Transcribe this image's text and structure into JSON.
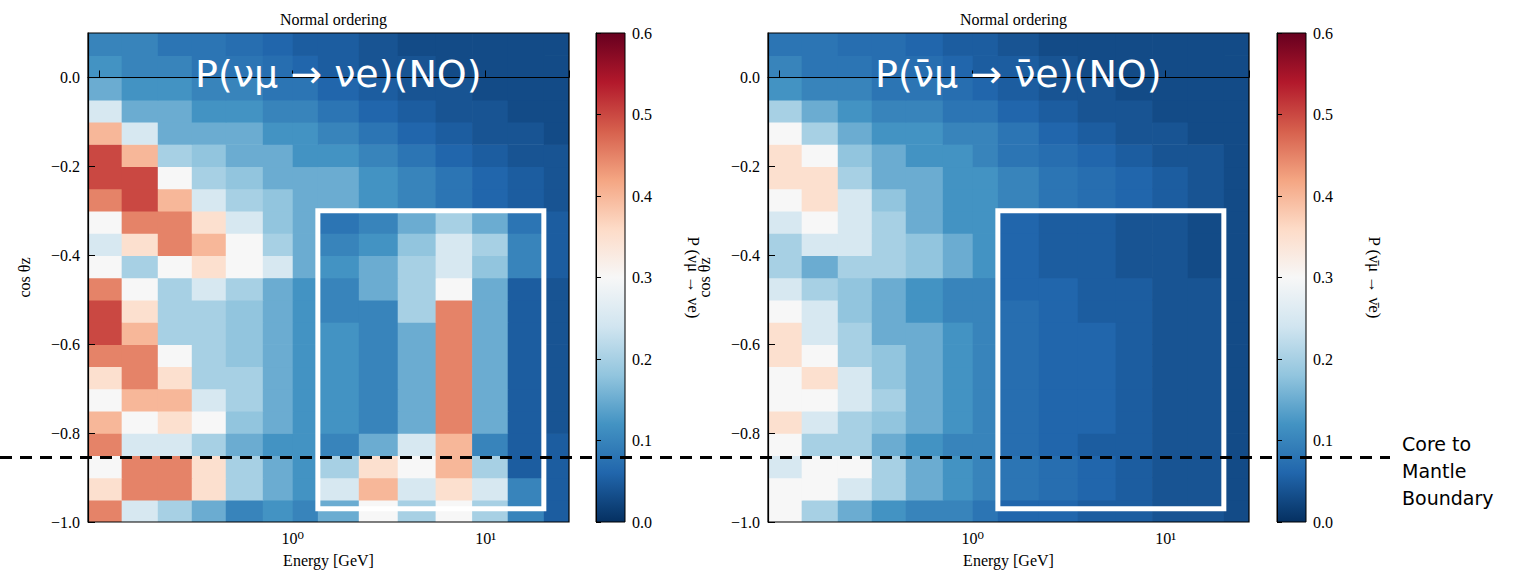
{
  "chart_data": [
    {
      "type": "heatmap",
      "title": "Normal ordering",
      "annotation": "P(νμ → νe)(NO)",
      "xlabel": "Energy [GeV]",
      "ylabel": "cos θz",
      "log": "x",
      "grid": false,
      "xlim": [
        0.087,
        27
      ],
      "xticks": [
        {
          "value": 1,
          "label": "10⁰"
        },
        {
          "value": 10,
          "label": "10¹"
        }
      ],
      "ylim": [
        -1,
        0.1
      ],
      "yticks": [
        {
          "value": -1,
          "label": "−1.0"
        },
        {
          "value": -0.8,
          "label": "−0.8"
        },
        {
          "value": -0.6,
          "label": "−0.6"
        },
        {
          "value": -0.4,
          "label": "−0.4"
        },
        {
          "value": -0.2,
          "label": "−0.2"
        },
        {
          "value": 0,
          "label": "0.0"
        }
      ],
      "energy_edges": [
        0.087,
        0.13,
        0.2,
        0.3,
        0.45,
        0.7,
        1,
        1.35,
        2.2,
        3.5,
        5.5,
        8.5,
        13,
        20,
        27
      ],
      "cos_edges": [
        -1,
        -0.95,
        -0.9,
        -0.85,
        -0.8,
        -0.75,
        -0.7,
        -0.65,
        -0.6,
        -0.55,
        -0.5,
        -0.45,
        -0.4,
        -0.35,
        -0.3,
        -0.25,
        -0.2,
        -0.15,
        -0.1,
        -0.05,
        0,
        0.05,
        0.1
      ],
      "probability": [
        [
          0.45,
          0.25,
          0.2,
          0.15,
          0.1,
          0.12,
          0.1,
          0.15,
          0.3,
          0.2,
          0.3,
          0.2,
          0.1,
          0.05
        ],
        [
          0.35,
          0.45,
          0.45,
          0.35,
          0.2,
          0.15,
          0.12,
          0.25,
          0.4,
          0.25,
          0.35,
          0.25,
          0.1,
          0.05
        ],
        [
          0.3,
          0.45,
          0.45,
          0.35,
          0.2,
          0.15,
          0.12,
          0.2,
          0.35,
          0.3,
          0.4,
          0.2,
          0.05,
          0.05
        ],
        [
          0.45,
          0.25,
          0.25,
          0.2,
          0.15,
          0.12,
          0.12,
          0.1,
          0.15,
          0.25,
          0.4,
          0.1,
          0.05,
          0.05
        ],
        [
          0.4,
          0.3,
          0.35,
          0.3,
          0.18,
          0.15,
          0.12,
          0.12,
          0.1,
          0.15,
          0.45,
          0.15,
          0.05,
          0.04
        ],
        [
          0.3,
          0.4,
          0.4,
          0.25,
          0.2,
          0.15,
          0.12,
          0.12,
          0.1,
          0.15,
          0.45,
          0.15,
          0.05,
          0.04
        ],
        [
          0.35,
          0.45,
          0.35,
          0.2,
          0.2,
          0.15,
          0.12,
          0.12,
          0.1,
          0.15,
          0.45,
          0.15,
          0.05,
          0.04
        ],
        [
          0.45,
          0.45,
          0.3,
          0.2,
          0.18,
          0.15,
          0.12,
          0.12,
          0.1,
          0.15,
          0.45,
          0.15,
          0.05,
          0.04
        ],
        [
          0.5,
          0.4,
          0.2,
          0.2,
          0.18,
          0.15,
          0.12,
          0.12,
          0.1,
          0.15,
          0.45,
          0.15,
          0.05,
          0.04
        ],
        [
          0.5,
          0.35,
          0.2,
          0.2,
          0.18,
          0.15,
          0.12,
          0.1,
          0.1,
          0.2,
          0.45,
          0.15,
          0.05,
          0.04
        ],
        [
          0.45,
          0.3,
          0.2,
          0.25,
          0.2,
          0.15,
          0.12,
          0.1,
          0.15,
          0.2,
          0.3,
          0.15,
          0.05,
          0.04
        ],
        [
          0.3,
          0.2,
          0.3,
          0.35,
          0.3,
          0.25,
          0.15,
          0.12,
          0.15,
          0.2,
          0.25,
          0.18,
          0.1,
          0.05
        ],
        [
          0.25,
          0.35,
          0.45,
          0.4,
          0.3,
          0.2,
          0.15,
          0.1,
          0.12,
          0.18,
          0.25,
          0.2,
          0.1,
          0.05
        ],
        [
          0.3,
          0.45,
          0.45,
          0.35,
          0.25,
          0.18,
          0.15,
          0.08,
          0.1,
          0.15,
          0.2,
          0.15,
          0.08,
          0.05
        ],
        [
          0.45,
          0.5,
          0.4,
          0.25,
          0.2,
          0.18,
          0.15,
          0.15,
          0.12,
          0.1,
          0.08,
          0.06,
          0.05,
          0.04
        ],
        [
          0.5,
          0.5,
          0.3,
          0.2,
          0.18,
          0.15,
          0.15,
          0.15,
          0.12,
          0.1,
          0.08,
          0.06,
          0.05,
          0.04
        ],
        [
          0.5,
          0.4,
          0.2,
          0.18,
          0.15,
          0.15,
          0.12,
          0.12,
          0.1,
          0.08,
          0.06,
          0.05,
          0.04,
          0.04
        ],
        [
          0.4,
          0.25,
          0.15,
          0.15,
          0.15,
          0.12,
          0.12,
          0.1,
          0.08,
          0.06,
          0.05,
          0.04,
          0.04,
          0.03
        ],
        [
          0.25,
          0.15,
          0.15,
          0.12,
          0.12,
          0.1,
          0.1,
          0.08,
          0.06,
          0.05,
          0.04,
          0.04,
          0.03,
          0.03
        ],
        [
          0.15,
          0.12,
          0.12,
          0.1,
          0.1,
          0.08,
          0.08,
          0.06,
          0.05,
          0.04,
          0.04,
          0.03,
          0.03,
          0.03
        ],
        [
          0.12,
          0.1,
          0.1,
          0.08,
          0.08,
          0.07,
          0.06,
          0.05,
          0.04,
          0.04,
          0.03,
          0.03,
          0.03,
          0.03
        ],
        [
          0.1,
          0.1,
          0.08,
          0.08,
          0.07,
          0.06,
          0.05,
          0.05,
          0.04,
          0.03,
          0.03,
          0.03,
          0.03,
          0.03
        ]
      ],
      "colorbar": {
        "label": "P (νμ → νe)",
        "range": [
          0,
          0.6
        ],
        "ticks": [
          {
            "value": 0,
            "label": "0.0"
          },
          0.1,
          0.2,
          0.3,
          0.4,
          0.5,
          0.6
        ]
      },
      "highlight_box": {
        "energy": [
          1.35,
          20
        ],
        "cos": [
          -0.97,
          -0.3
        ]
      }
    },
    {
      "type": "heatmap",
      "title": "Normal ordering",
      "annotation": "P(ν̄μ → ν̄e)(NO)",
      "xlabel": "Energy [GeV]",
      "ylabel": "cos θz",
      "log": "x",
      "grid": false,
      "xlim": [
        0.087,
        27
      ],
      "xticks": [
        {
          "value": 1,
          "label": "10⁰"
        },
        {
          "value": 10,
          "label": "10¹"
        }
      ],
      "ylim": [
        -1,
        0.1
      ],
      "yticks": [
        {
          "value": -1,
          "label": "−1.0"
        },
        {
          "value": -0.8,
          "label": "−0.8"
        },
        {
          "value": -0.6,
          "label": "−0.6"
        },
        {
          "value": -0.4,
          "label": "−0.4"
        },
        {
          "value": -0.2,
          "label": "−0.2"
        },
        {
          "value": 0,
          "label": "0.0"
        }
      ],
      "energy_edges": [
        0.087,
        0.13,
        0.2,
        0.3,
        0.45,
        0.7,
        1,
        1.35,
        2.2,
        3.5,
        5.5,
        8.5,
        13,
        20,
        27
      ],
      "cos_edges": [
        -1,
        -0.95,
        -0.9,
        -0.85,
        -0.8,
        -0.75,
        -0.7,
        -0.65,
        -0.6,
        -0.55,
        -0.5,
        -0.45,
        -0.4,
        -0.35,
        -0.3,
        -0.25,
        -0.2,
        -0.15,
        -0.1,
        -0.05,
        0,
        0.05,
        0.1
      ],
      "probability": [
        [
          0.3,
          0.2,
          0.15,
          0.12,
          0.1,
          0.1,
          0.08,
          0.06,
          0.06,
          0.05,
          0.05,
          0.04,
          0.04,
          0.03
        ],
        [
          0.3,
          0.3,
          0.25,
          0.2,
          0.15,
          0.12,
          0.1,
          0.08,
          0.07,
          0.06,
          0.05,
          0.04,
          0.04,
          0.03
        ],
        [
          0.25,
          0.3,
          0.3,
          0.2,
          0.15,
          0.12,
          0.1,
          0.08,
          0.07,
          0.06,
          0.05,
          0.04,
          0.04,
          0.03
        ],
        [
          0.3,
          0.2,
          0.2,
          0.15,
          0.12,
          0.1,
          0.1,
          0.07,
          0.06,
          0.05,
          0.05,
          0.04,
          0.04,
          0.03
        ],
        [
          0.35,
          0.25,
          0.2,
          0.18,
          0.15,
          0.12,
          0.1,
          0.07,
          0.06,
          0.06,
          0.05,
          0.04,
          0.04,
          0.03
        ],
        [
          0.3,
          0.3,
          0.25,
          0.2,
          0.15,
          0.12,
          0.1,
          0.07,
          0.06,
          0.06,
          0.05,
          0.04,
          0.04,
          0.03
        ],
        [
          0.3,
          0.35,
          0.25,
          0.18,
          0.15,
          0.12,
          0.1,
          0.07,
          0.06,
          0.06,
          0.05,
          0.04,
          0.04,
          0.03
        ],
        [
          0.35,
          0.3,
          0.2,
          0.18,
          0.15,
          0.12,
          0.1,
          0.07,
          0.06,
          0.06,
          0.05,
          0.04,
          0.04,
          0.03
        ],
        [
          0.35,
          0.25,
          0.2,
          0.15,
          0.15,
          0.12,
          0.1,
          0.07,
          0.06,
          0.06,
          0.05,
          0.04,
          0.04,
          0.03
        ],
        [
          0.3,
          0.25,
          0.18,
          0.15,
          0.12,
          0.1,
          0.1,
          0.07,
          0.06,
          0.05,
          0.05,
          0.04,
          0.04,
          0.03
        ],
        [
          0.25,
          0.2,
          0.18,
          0.15,
          0.12,
          0.1,
          0.1,
          0.06,
          0.06,
          0.05,
          0.05,
          0.04,
          0.04,
          0.03
        ],
        [
          0.2,
          0.15,
          0.2,
          0.2,
          0.18,
          0.15,
          0.12,
          0.06,
          0.05,
          0.05,
          0.04,
          0.04,
          0.03,
          0.03
        ],
        [
          0.2,
          0.25,
          0.25,
          0.2,
          0.18,
          0.15,
          0.12,
          0.06,
          0.05,
          0.05,
          0.04,
          0.04,
          0.03,
          0.03
        ],
        [
          0.25,
          0.3,
          0.25,
          0.2,
          0.15,
          0.12,
          0.12,
          0.06,
          0.05,
          0.05,
          0.04,
          0.04,
          0.03,
          0.03
        ],
        [
          0.3,
          0.35,
          0.25,
          0.18,
          0.15,
          0.12,
          0.12,
          0.1,
          0.08,
          0.07,
          0.06,
          0.05,
          0.04,
          0.03
        ],
        [
          0.35,
          0.35,
          0.2,
          0.15,
          0.15,
          0.12,
          0.12,
          0.1,
          0.08,
          0.07,
          0.06,
          0.05,
          0.04,
          0.03
        ],
        [
          0.35,
          0.3,
          0.18,
          0.15,
          0.12,
          0.12,
          0.1,
          0.08,
          0.07,
          0.06,
          0.05,
          0.04,
          0.04,
          0.03
        ],
        [
          0.3,
          0.2,
          0.15,
          0.12,
          0.12,
          0.1,
          0.1,
          0.08,
          0.06,
          0.05,
          0.04,
          0.04,
          0.03,
          0.03
        ],
        [
          0.2,
          0.15,
          0.12,
          0.1,
          0.1,
          0.08,
          0.08,
          0.06,
          0.05,
          0.04,
          0.04,
          0.03,
          0.03,
          0.03
        ],
        [
          0.12,
          0.1,
          0.1,
          0.08,
          0.08,
          0.07,
          0.06,
          0.05,
          0.04,
          0.04,
          0.03,
          0.03,
          0.03,
          0.03
        ],
        [
          0.1,
          0.08,
          0.08,
          0.07,
          0.07,
          0.06,
          0.05,
          0.05,
          0.04,
          0.03,
          0.03,
          0.03,
          0.03,
          0.03
        ],
        [
          0.08,
          0.08,
          0.07,
          0.07,
          0.06,
          0.05,
          0.05,
          0.04,
          0.03,
          0.03,
          0.03,
          0.03,
          0.03,
          0.03
        ]
      ],
      "colorbar": {
        "label": "P (ν̄μ → ν̄e)",
        "range": [
          0,
          0.6
        ],
        "ticks": [
          {
            "value": 0,
            "label": "0.0"
          },
          0.1,
          0.2,
          0.3,
          0.4,
          0.5,
          0.6
        ]
      },
      "highlight_box": {
        "energy": [
          1.35,
          20
        ],
        "cos": [
          -0.97,
          -0.3
        ]
      }
    }
  ],
  "boundary": {
    "cos": -0.855,
    "label": "Core to Mantle Boundary"
  }
}
